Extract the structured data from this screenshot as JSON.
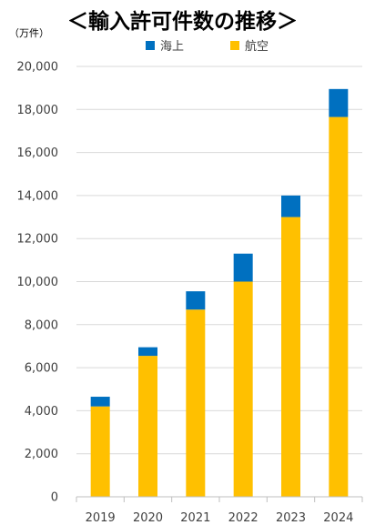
{
  "chart_data": {
    "type": "bar",
    "stacked": true,
    "title": "＜輸入許可件数の推移＞",
    "unit_label": "（万件）",
    "categories": [
      "2019",
      "2020",
      "2021",
      "2022",
      "2023",
      "2024"
    ],
    "series": [
      {
        "name": "航空",
        "color": "#FFC000",
        "values": [
          4200,
          6550,
          8700,
          10000,
          13000,
          17650
        ]
      },
      {
        "name": "海上",
        "color": "#0070C0",
        "values": [
          450,
          400,
          850,
          1300,
          1000,
          1300
        ]
      }
    ],
    "legend_order": [
      "海上",
      "航空"
    ],
    "ylim": [
      0,
      20000
    ],
    "yticks": [
      0,
      2000,
      4000,
      6000,
      8000,
      10000,
      12000,
      14000,
      16000,
      18000,
      20000
    ],
    "ytick_labels": [
      "0",
      "2,000",
      "4,000",
      "6,000",
      "8,000",
      "10,000",
      "12,000",
      "14,000",
      "16,000",
      "18,000",
      "20,000"
    ],
    "grid": true,
    "legend_position": "top"
  }
}
